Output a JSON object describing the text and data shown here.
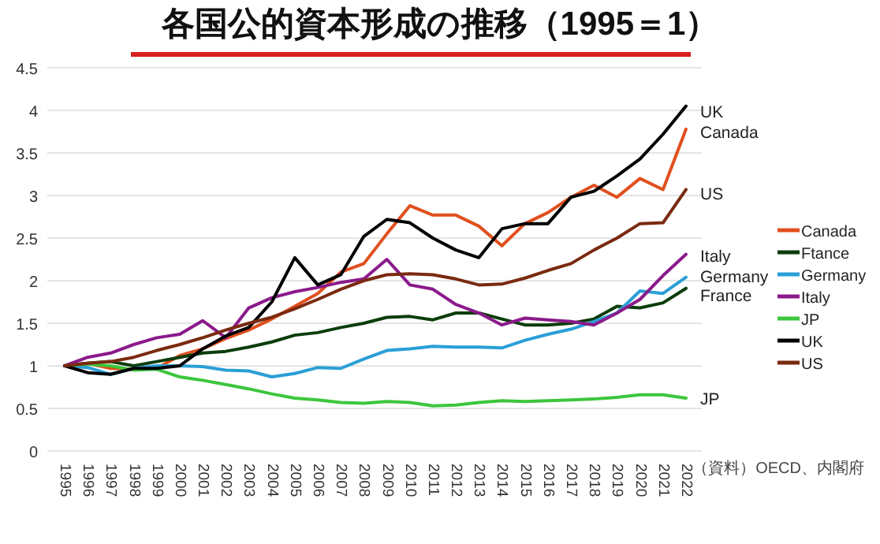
{
  "chart_data": {
    "type": "line",
    "title": "各国公的資本形成の推移（1995＝1）",
    "categories": [
      "1995",
      "1996",
      "1997",
      "1998",
      "1999",
      "2000",
      "2001",
      "2002",
      "2003",
      "2004",
      "2005",
      "2006",
      "2007",
      "2008",
      "2009",
      "2010",
      "2011",
      "2012",
      "2013",
      "2014",
      "2015",
      "2016",
      "2017",
      "2018",
      "2019",
      "2020",
      "2021",
      "2022"
    ],
    "series": [
      {
        "name": "Canada",
        "color": "#e0501e",
        "values": [
          1.0,
          1.03,
          0.97,
          0.96,
          0.97,
          1.12,
          1.2,
          1.32,
          1.42,
          1.55,
          1.7,
          1.85,
          2.1,
          2.2,
          2.55,
          2.88,
          2.77,
          2.77,
          2.64,
          2.41,
          2.67,
          2.8,
          2.98,
          3.12,
          2.98,
          3.2,
          3.07,
          3.78
        ]
      },
      {
        "name": "Ftance",
        "color": "#0b3d0b",
        "values": [
          1.0,
          1.03,
          1.05,
          1.0,
          1.05,
          1.1,
          1.15,
          1.17,
          1.22,
          1.28,
          1.36,
          1.39,
          1.45,
          1.5,
          1.57,
          1.58,
          1.54,
          1.62,
          1.62,
          1.55,
          1.48,
          1.48,
          1.5,
          1.55,
          1.7,
          1.68,
          1.74,
          1.91
        ]
      },
      {
        "name": "Germany",
        "color": "#2a9fd6",
        "values": [
          1.0,
          0.98,
          0.9,
          0.97,
          1.0,
          1.0,
          0.99,
          0.95,
          0.94,
          0.87,
          0.91,
          0.98,
          0.97,
          1.08,
          1.18,
          1.2,
          1.23,
          1.22,
          1.22,
          1.21,
          1.3,
          1.37,
          1.43,
          1.52,
          1.62,
          1.88,
          1.85,
          2.04
        ]
      },
      {
        "name": "Italy",
        "color": "#8b1a8b",
        "values": [
          1.0,
          1.1,
          1.15,
          1.25,
          1.33,
          1.37,
          1.53,
          1.33,
          1.68,
          1.8,
          1.87,
          1.92,
          1.98,
          2.02,
          2.25,
          1.95,
          1.9,
          1.72,
          1.62,
          1.48,
          1.56,
          1.54,
          1.52,
          1.48,
          1.62,
          1.78,
          2.06,
          2.31
        ]
      },
      {
        "name": "JP",
        "color": "#3cc63c",
        "values": [
          1.0,
          1.02,
          1.0,
          0.95,
          0.96,
          0.87,
          0.83,
          0.78,
          0.73,
          0.67,
          0.62,
          0.6,
          0.57,
          0.56,
          0.58,
          0.57,
          0.53,
          0.54,
          0.57,
          0.59,
          0.58,
          0.59,
          0.6,
          0.61,
          0.63,
          0.66,
          0.66,
          0.62
        ]
      },
      {
        "name": "UK",
        "color": "#000000",
        "values": [
          1.0,
          0.92,
          0.9,
          0.97,
          0.97,
          1.0,
          1.2,
          1.35,
          1.45,
          1.75,
          2.27,
          1.95,
          2.07,
          2.52,
          2.72,
          2.68,
          2.5,
          2.36,
          2.27,
          2.61,
          2.67,
          2.67,
          2.98,
          3.05,
          3.23,
          3.43,
          3.72,
          4.05
        ]
      },
      {
        "name": "US",
        "color": "#7a2a10",
        "values": [
          1.0,
          1.03,
          1.05,
          1.1,
          1.18,
          1.25,
          1.33,
          1.42,
          1.5,
          1.57,
          1.67,
          1.78,
          1.9,
          2.0,
          2.07,
          2.08,
          2.07,
          2.02,
          1.95,
          1.96,
          2.03,
          2.12,
          2.2,
          2.36,
          2.5,
          2.67,
          2.68,
          3.07
        ]
      }
    ],
    "ylim": [
      0,
      4.5
    ],
    "yticks": [
      0,
      0.5,
      1,
      1.5,
      2,
      2.5,
      3,
      3.5,
      4,
      4.5
    ],
    "grid": "y",
    "legend": "right",
    "annotations": [
      {
        "text": "UK",
        "x": "2022",
        "y": 3.99
      },
      {
        "text": "Canada",
        "x": "2022",
        "y": 3.75
      },
      {
        "text": "US",
        "x": "2022",
        "y": 3.03
      },
      {
        "text": "Italy",
        "x": "2022",
        "y": 2.3
      },
      {
        "text": "Germany",
        "x": "2022",
        "y": 2.06
      },
      {
        "text": "France",
        "x": "2022",
        "y": 1.83
      },
      {
        "text": "JP",
        "x": "2022",
        "y": 0.62
      },
      "（資料）OECD、内閣府"
    ]
  }
}
